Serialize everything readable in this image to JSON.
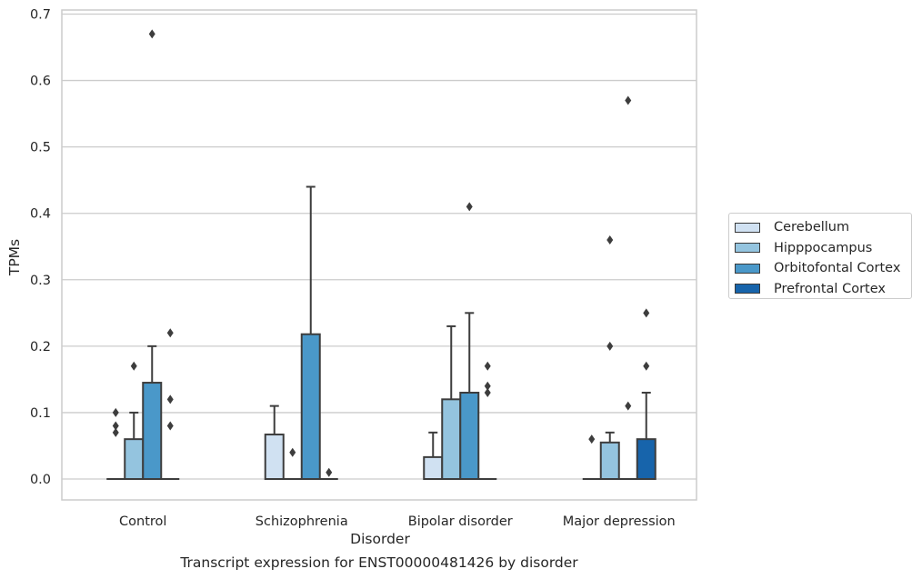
{
  "chart_data": {
    "type": "box",
    "caption": "Transcript expression for ENST00000481426 by disorder",
    "xlabel": "Disorder",
    "ylabel": "TPMs",
    "ylim": [
      -0.03,
      0.705
    ],
    "yticks": [
      "0.0",
      "0.1",
      "0.2",
      "0.3",
      "0.4",
      "0.5",
      "0.6",
      "0.7"
    ],
    "grid": true,
    "legend_position": "right",
    "categories": [
      "Control",
      "Schizophrenia",
      "Bipolar disorder",
      "Major depression"
    ],
    "series": [
      {
        "name": "Cerebellum",
        "color": "#d0e1f2",
        "boxes": [
          {
            "q1": 0.0,
            "median": 0.0,
            "q3": 0.0,
            "whisker_low": 0.0,
            "whisker_high": 0.0,
            "outliers": [
              0.07,
              0.08,
              0.1
            ]
          },
          {
            "q1": 0.0,
            "median": 0.0,
            "q3": 0.067,
            "whisker_low": 0.0,
            "whisker_high": 0.11,
            "outliers": []
          },
          {
            "q1": 0.0,
            "median": 0.0,
            "q3": 0.033,
            "whisker_low": 0.0,
            "whisker_high": 0.07,
            "outliers": []
          },
          {
            "q1": 0.0,
            "median": 0.0,
            "q3": 0.0,
            "whisker_low": 0.0,
            "whisker_high": 0.0,
            "outliers": [
              0.06
            ]
          }
        ]
      },
      {
        "name": "Hipppocampus",
        "color": "#94c4df",
        "boxes": [
          {
            "q1": 0.0,
            "median": 0.0,
            "q3": 0.06,
            "whisker_low": 0.0,
            "whisker_high": 0.1,
            "outliers": [
              0.17
            ]
          },
          {
            "q1": 0.0,
            "median": 0.0,
            "q3": 0.0,
            "whisker_low": 0.0,
            "whisker_high": 0.0,
            "outliers": [
              0.04
            ]
          },
          {
            "q1": 0.0,
            "median": 0.0,
            "q3": 0.12,
            "whisker_low": 0.0,
            "whisker_high": 0.23,
            "outliers": []
          },
          {
            "q1": 0.0,
            "median": 0.0,
            "q3": 0.055,
            "whisker_low": 0.0,
            "whisker_high": 0.07,
            "outliers": [
              0.2,
              0.36
            ]
          }
        ]
      },
      {
        "name": "Orbitofontal Cortex",
        "color": "#4a98c9",
        "boxes": [
          {
            "q1": 0.0,
            "median": 0.0,
            "q3": 0.145,
            "whisker_low": 0.0,
            "whisker_high": 0.2,
            "outliers": [
              0.67
            ]
          },
          {
            "q1": 0.0,
            "median": 0.0,
            "q3": 0.218,
            "whisker_low": 0.0,
            "whisker_high": 0.44,
            "outliers": []
          },
          {
            "q1": 0.0,
            "median": 0.0,
            "q3": 0.13,
            "whisker_low": 0.0,
            "whisker_high": 0.25,
            "outliers": [
              0.41
            ]
          },
          {
            "q1": 0.0,
            "median": 0.0,
            "q3": 0.0,
            "whisker_low": 0.0,
            "whisker_high": 0.0,
            "outliers": [
              0.11,
              0.57
            ]
          }
        ]
      },
      {
        "name": "Prefrontal Cortex",
        "color": "#1764ab",
        "boxes": [
          {
            "q1": 0.0,
            "median": 0.0,
            "q3": 0.0,
            "whisker_low": 0.0,
            "whisker_high": 0.0,
            "outliers": [
              0.08,
              0.12,
              0.22
            ]
          },
          {
            "q1": 0.0,
            "median": 0.0,
            "q3": 0.0,
            "whisker_low": 0.0,
            "whisker_high": 0.0,
            "outliers": [
              0.01
            ]
          },
          {
            "q1": 0.0,
            "median": 0.0,
            "q3": 0.0,
            "whisker_low": 0.0,
            "whisker_high": 0.0,
            "outliers": [
              0.13,
              0.14,
              0.17
            ]
          },
          {
            "q1": 0.0,
            "median": 0.0,
            "q3": 0.06,
            "whisker_low": 0.0,
            "whisker_high": 0.13,
            "outliers": [
              0.17,
              0.25
            ]
          }
        ]
      }
    ]
  }
}
